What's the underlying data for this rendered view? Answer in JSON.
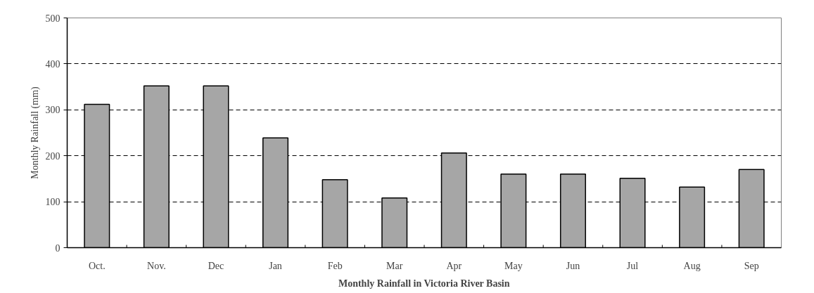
{
  "chart_data": {
    "type": "bar",
    "title": "Monthly Rainfall in Victoria River Basin",
    "ylabel": "Monthly Rainfall (mm)",
    "categories": [
      "Oct.",
      "Nov.",
      "Dec",
      "Jan",
      "Feb",
      "Mar",
      "Apr",
      "May",
      "Jun",
      "Jul",
      "Aug",
      "Sep"
    ],
    "values": [
      312,
      352,
      352,
      239,
      148,
      108,
      206,
      160,
      160,
      151,
      132,
      170
    ],
    "color": "#a6a6a6",
    "ylim": [
      0,
      500
    ],
    "yticks": [
      0,
      100,
      200,
      300,
      400,
      500
    ],
    "grid": "y",
    "line_style": "dashed"
  }
}
